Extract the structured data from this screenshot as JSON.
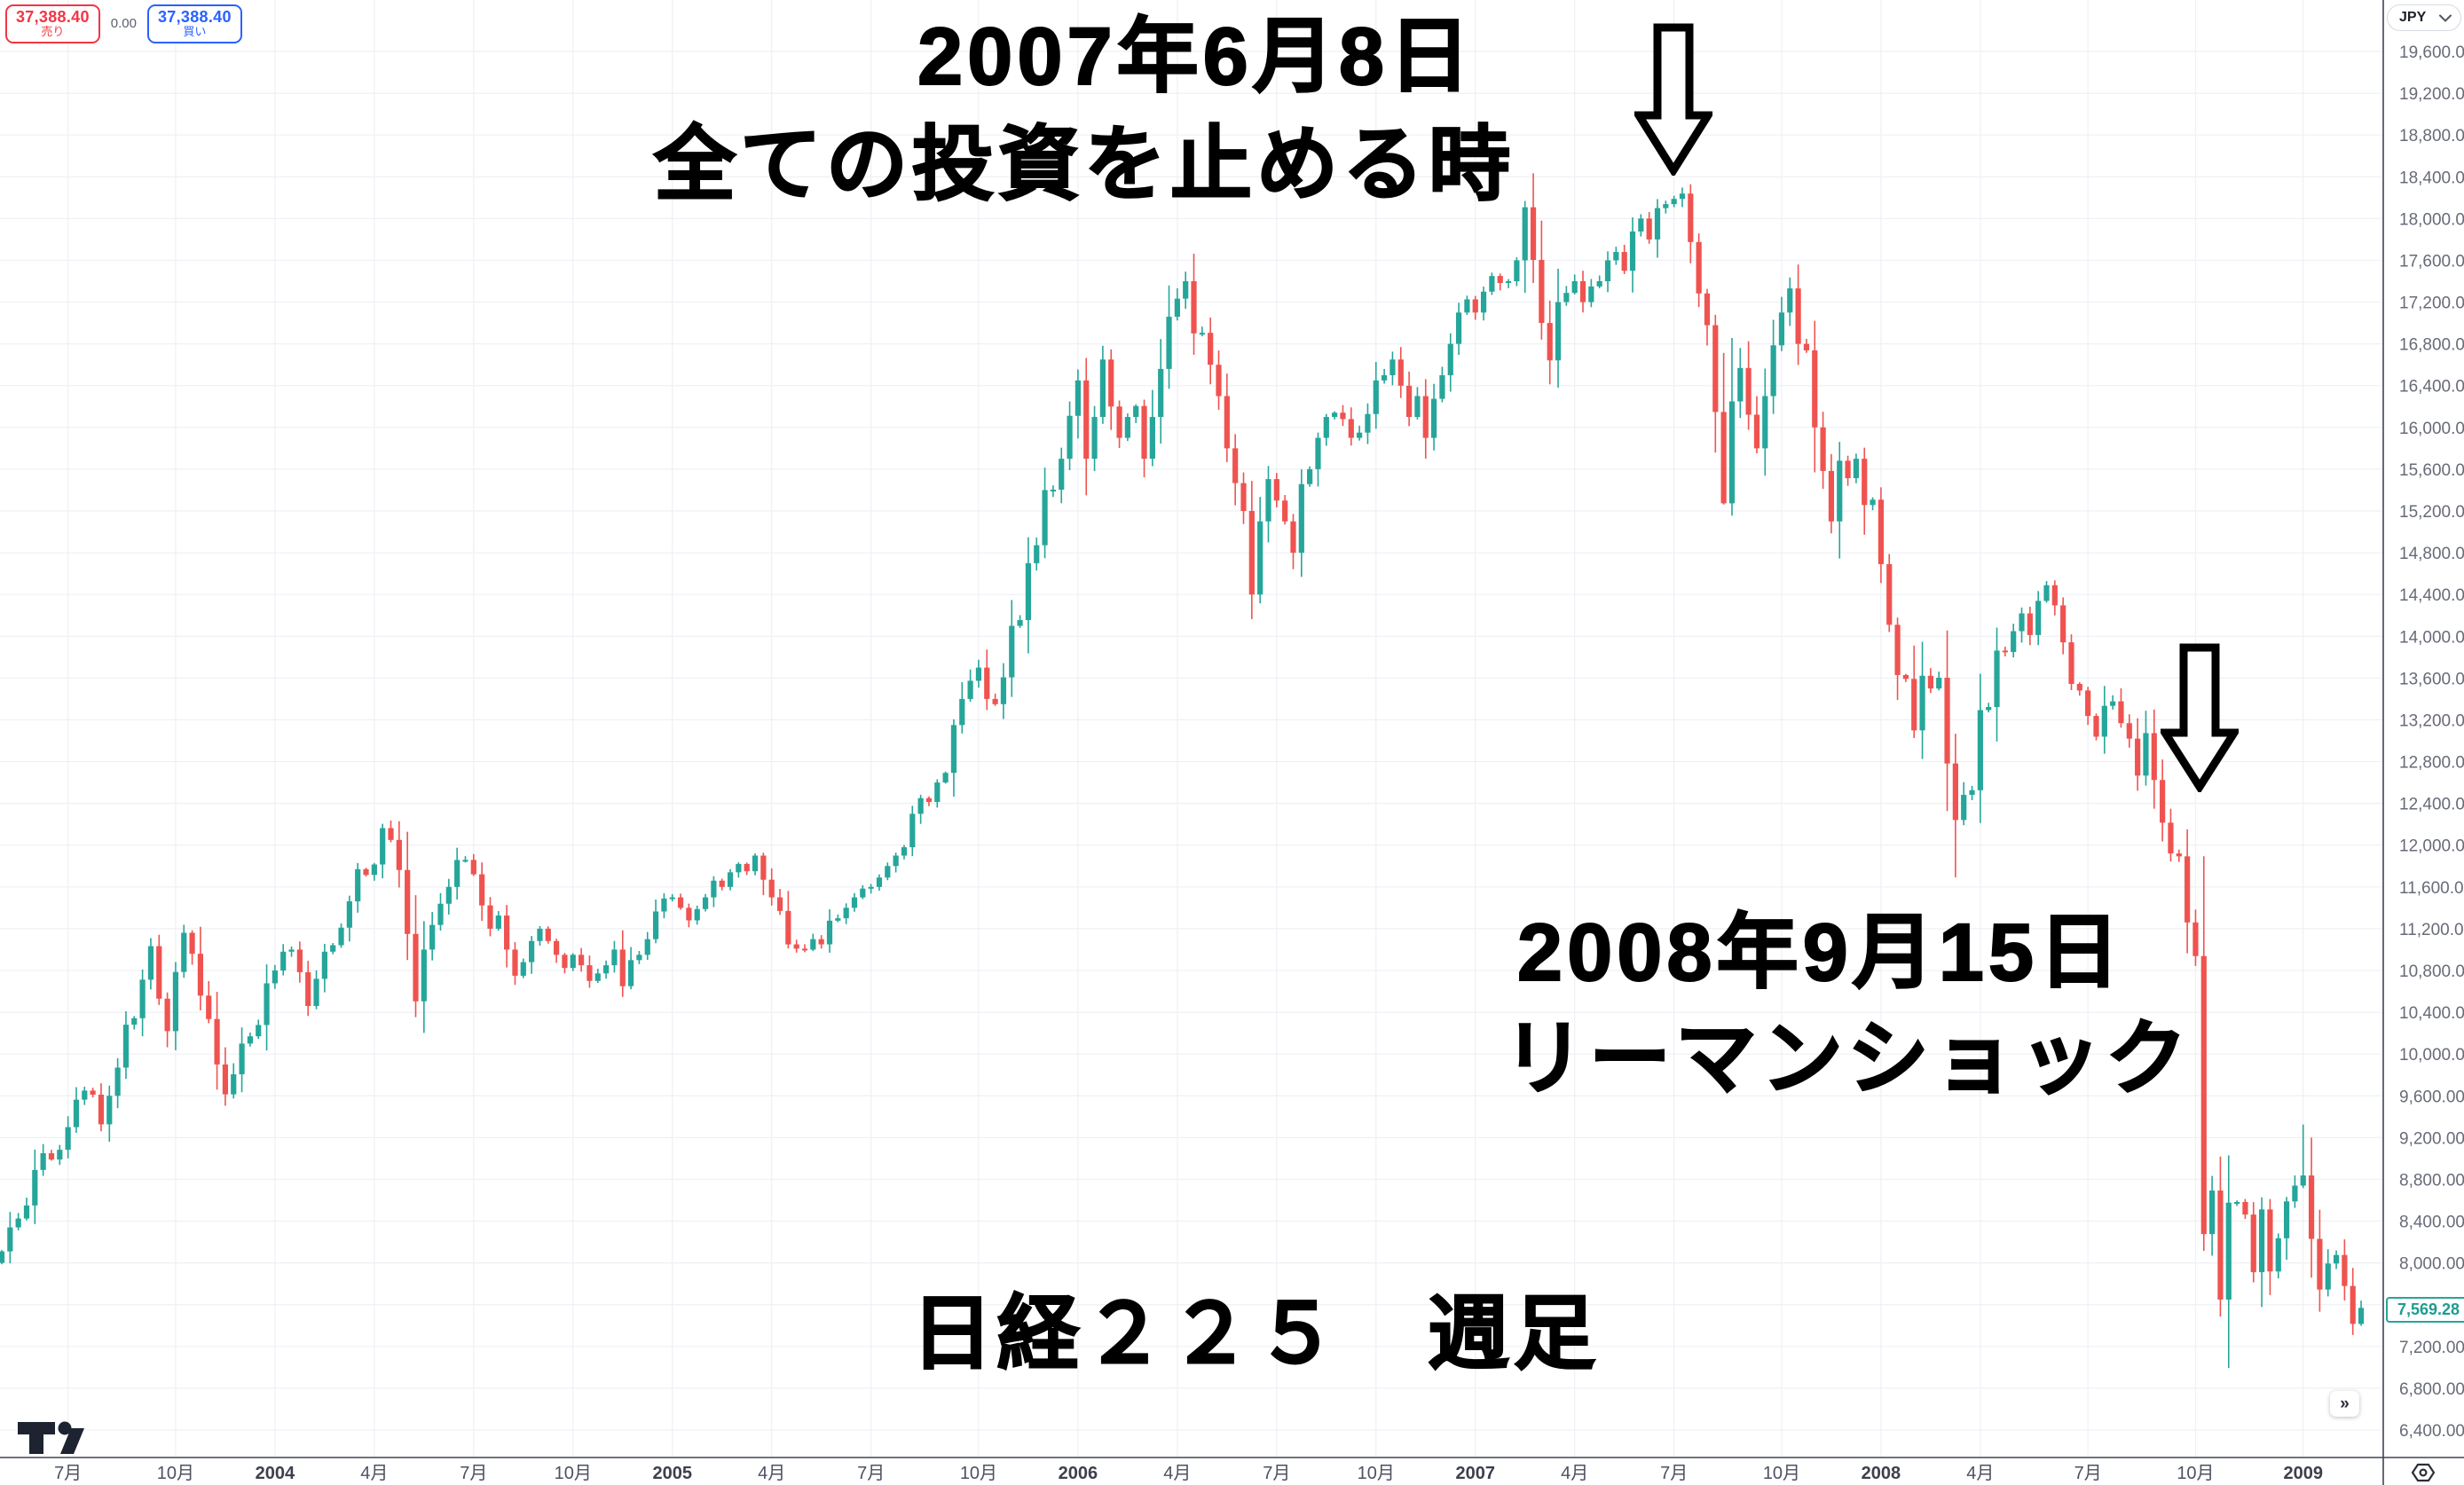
{
  "quote_panel": {
    "sell_price": "37,388.40",
    "sell_label": "売り",
    "spread": "0.00",
    "buy_price": "37,388.40",
    "buy_label": "買い",
    "sell_color": "#f23645",
    "buy_color": "#2962ff"
  },
  "price_axis": {
    "currency": "JPY",
    "last_price_label": "7,569.28"
  },
  "controls": {
    "more_button": "»"
  },
  "annotations": {
    "peak_date": "2007年6月8日",
    "peak_text": "全ての投資を止める時",
    "crash_date": "2008年9月15日",
    "crash_text": "リーマンショック",
    "caption": "日経２２５　週足"
  },
  "time_axis": {
    "ticks": [
      {
        "label": "7月",
        "week": 8
      },
      {
        "label": "10月",
        "week": 21
      },
      {
        "label": "2004",
        "week": 33,
        "year": true
      },
      {
        "label": "4月",
        "week": 45
      },
      {
        "label": "7月",
        "week": 57
      },
      {
        "label": "10月",
        "week": 69
      },
      {
        "label": "2005",
        "week": 81,
        "year": true
      },
      {
        "label": "4月",
        "week": 93
      },
      {
        "label": "7月",
        "week": 105
      },
      {
        "label": "10月",
        "week": 118
      },
      {
        "label": "2006",
        "week": 130,
        "year": true
      },
      {
        "label": "4月",
        "week": 142
      },
      {
        "label": "7月",
        "week": 154
      },
      {
        "label": "10月",
        "week": 166
      },
      {
        "label": "2007",
        "week": 178,
        "year": true
      },
      {
        "label": "4月",
        "week": 190
      },
      {
        "label": "7月",
        "week": 202
      },
      {
        "label": "10月",
        "week": 215
      },
      {
        "label": "2008",
        "week": 227,
        "year": true
      },
      {
        "label": "4月",
        "week": 239
      },
      {
        "label": "7月",
        "week": 252
      },
      {
        "label": "10月",
        "week": 265
      },
      {
        "label": "2009",
        "week": 278,
        "year": true
      }
    ]
  },
  "chart_data": {
    "type": "candlestick",
    "title": "日経２２５ 週足",
    "instrument": "Nikkei 225",
    "timeframe": "weekly",
    "x_start": "2003-05",
    "x_end": "2009-02",
    "y_min": 6400,
    "y_max": 19600,
    "y_step": 400,
    "hidden_y_label": 7600,
    "grid": true,
    "up_color": "#26a69a",
    "down_color": "#ef5350",
    "first_open": 8000,
    "last_price": 7569.28,
    "weekly_closes": [
      8110,
      8340,
      8425,
      8550,
      8890,
      9050,
      8990,
      9083,
      9300,
      9563,
      9650,
      9611,
      9327,
      9600,
      9870,
      10281,
      10343,
      10712,
      11033,
      10530,
      10219,
      10786,
      11161,
      10960,
      10559,
      10335,
      9900,
      9614,
      9806,
      10100,
      10170,
      10278,
      10677,
      10800,
      10980,
      11000,
      10784,
      10460,
      10720,
      10980,
      11042,
      11210,
      11462,
      11770,
      11715,
      11815,
      12163,
      12050,
      11762,
      11150,
      10505,
      11000,
      11236,
      11439,
      11600,
      11858,
      11859,
      11721,
      11423,
      11200,
      11326,
      11000,
      10750,
      10880,
      11082,
      11200,
      11082,
      10950,
      10824,
      10950,
      10850,
      10700,
      10772,
      10850,
      11000,
      10650,
      10899,
      10950,
      11100,
      11365,
      11489,
      11500,
      11400,
      11280,
      11388,
      11500,
      11660,
      11600,
      11740,
      11820,
      11750,
      11900,
      11669,
      11500,
      11370,
      11050,
      11009,
      11000,
      11100,
      11050,
      11277,
      11300,
      11400,
      11500,
      11584,
      11600,
      11690,
      11800,
      11900,
      11980,
      12300,
      12450,
      12414,
      12600,
      12692,
      13150,
      13400,
      13574,
      13700,
      13400,
      13350,
      13607,
      14100,
      14155,
      14700,
      14872,
      15400,
      15404,
      15700,
      16111,
      16450,
      15700,
      16100,
      16650,
      16200,
      15900,
      16100,
      16205,
      15700,
      16100,
      16560,
      17060,
      17233,
      17400,
      16900,
      16906,
      16600,
      16300,
      15800,
      15467,
      15200,
      14400,
      15100,
      15505,
      15300,
      15100,
      14800,
      15457,
      15600,
      15900,
      16100,
      16141,
      16080,
      15900,
      15950,
      16128,
      16450,
      16500,
      16650,
      16399,
      16100,
      16300,
      15900,
      16274,
      16500,
      16800,
      17100,
      17226,
      17100,
      17300,
      17450,
      17383,
      17400,
      17600,
      18108,
      17604,
      17000,
      16642,
      17200,
      17288,
      17400,
      17200,
      17350,
      17400,
      17600,
      17680,
      17500,
      17876,
      18000,
      17800,
      18100,
      18138,
      18188,
      18239,
      17775,
      17283,
      16979,
      16148,
      15273,
      16249,
      16569,
      16122,
      15800,
      16300,
      16786,
      17100,
      17331,
      16800,
      16738,
      16000,
      15583,
      15100,
      15681,
      15514,
      15700,
      15257,
      15308,
      14691,
      14110,
      13629,
      13592,
      13099,
      13622,
      13500,
      13603,
      12782,
      12241,
      12482,
      12526,
      13293,
      13323,
      13863,
      13850,
      14049,
      14219,
      14012,
      14339,
      14489,
      14296,
      13942,
      13544,
      13481,
      13237,
      13039,
      13334,
      13377,
      13168,
      13020,
      12666,
      13073,
      12624,
      12215,
      11921,
      11893,
      11260,
      10938,
      8276,
      8693,
      7649,
      8577,
      8583,
      8463,
      7911,
      8512,
      7918,
      8236,
      8589,
      8740,
      8837,
      8230,
      7745,
      7994,
      8076,
      7779,
      7416,
      7569.28
    ],
    "wick_overrides": {
      "22": {
        "high": 11238
      },
      "203": {
        "high": 18297
      },
      "208": {
        "low": 15262
      },
      "236": {
        "low": 11691
      },
      "266": {
        "low": 8115
      },
      "268": {
        "low": 7486
      },
      "269": {
        "low": 6994,
        "high": 9029
      },
      "278": {
        "high": 9325
      }
    }
  }
}
